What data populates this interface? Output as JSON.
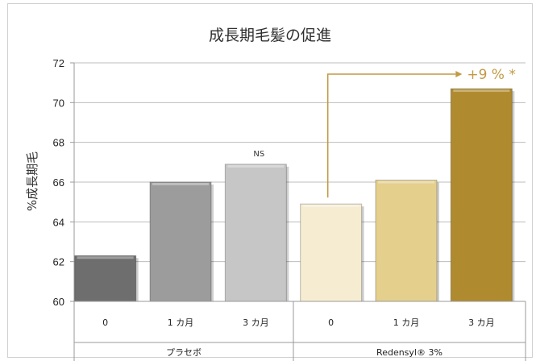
{
  "chart_data": {
    "type": "bar",
    "title": "成長期毛髪の促進",
    "ylabel": "%成長期毛",
    "ylim": [
      60,
      72
    ],
    "yticks": [
      "60",
      "62",
      "64",
      "66",
      "68",
      "70",
      "72"
    ],
    "grid": true,
    "categories": [
      "0",
      "1 カ月",
      "3 カ月",
      "0",
      "1 カ月",
      "3 カ月"
    ],
    "values": [
      62.3,
      66.0,
      66.9,
      64.9,
      66.1,
      70.7
    ],
    "bar_colors": [
      "#6e6e6e",
      "#9c9c9c",
      "#c6c6c6",
      "#f6ecd2",
      "#e4cf8c",
      "#b08a2e"
    ],
    "groups": [
      {
        "label": "プラセボ",
        "count": 3
      },
      {
        "label": "Redensyl® 3%",
        "count": 3
      }
    ],
    "annotations": [
      {
        "label": "NS",
        "bar_index": 2
      },
      {
        "label": "+9 % *",
        "from_bar": 3,
        "to_bar": 5,
        "color": "#c29a45"
      }
    ]
  }
}
